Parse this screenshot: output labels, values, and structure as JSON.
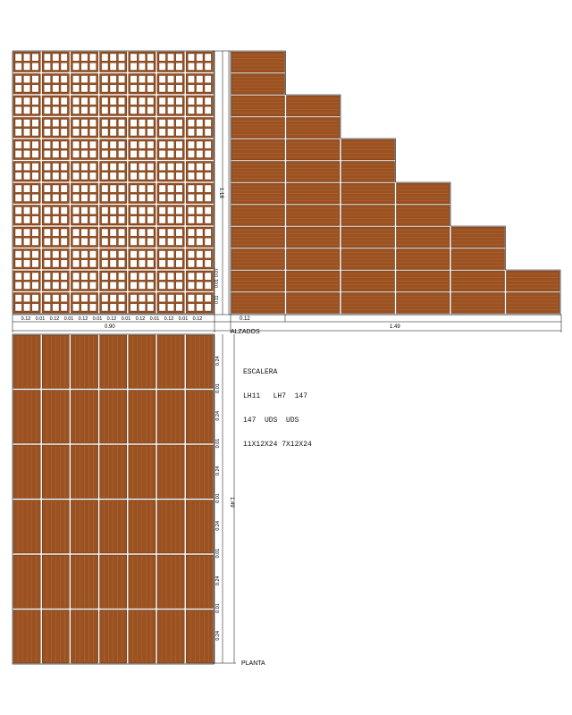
{
  "colors": {
    "brick": "#9a5222",
    "brick_dark": "#5e2c0e",
    "brick_light": "#b86a33",
    "line": "#000000"
  },
  "labels": {
    "alzados": "ALZADOS",
    "planta": "PLANTA"
  },
  "dimensions": {
    "wall_height": "1.18",
    "wall_width": "0.90",
    "stair_width": "1.49",
    "stair_first": "0.12",
    "plan_length": "1.49",
    "elev_segments": [
      "0.12",
      "0.01",
      "0.12",
      "0.01",
      "0.12",
      "0.01",
      "0.12",
      "0.01",
      "0.12",
      "0.01",
      "0.12",
      "0.01",
      "0.12"
    ],
    "small_vertical": [
      "0.11",
      "0.01",
      "0.07"
    ],
    "plan_rows": [
      "0.24",
      "0.01",
      "0.24",
      "0.01",
      "0.24",
      "0.01",
      "0.24",
      "0.01",
      "0.24",
      "0.01",
      "0.24"
    ]
  },
  "note": {
    "title": "ESCALERA",
    "col1": [
      "LH11",
      "147  UDS",
      "11X12X24"
    ],
    "col2": [
      "LH7  147",
      "UDS",
      "7X12X24"
    ]
  }
}
